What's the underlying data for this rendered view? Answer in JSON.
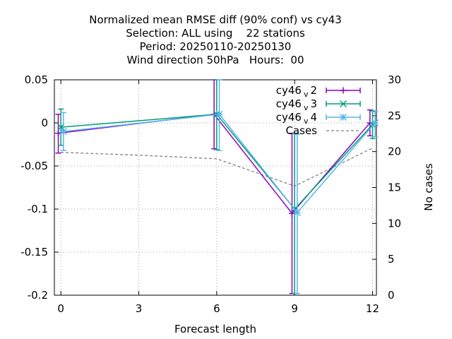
{
  "chart_data": {
    "type": "line",
    "title_lines": [
      "Normalized mean RMSE diff (90% conf) vs cy43",
      "Selection: ALL using    22 stations",
      "Period: 20250110-20250130",
      "Wind direction 50hPa   Hours:  00"
    ],
    "xlabel": "Forecast length",
    "ylabel": "",
    "y2label": "No cases",
    "xlim": [
      -0.25,
      12.15
    ],
    "ylim": [
      -0.2,
      0.05
    ],
    "y2lim": [
      0,
      30
    ],
    "xticks": [
      "0",
      "3",
      "6",
      "9",
      "12"
    ],
    "xtick_values": [
      0,
      3,
      6,
      9,
      12
    ],
    "yticks": [
      "0.05",
      "0",
      "-0.05",
      "-0.1",
      "-0.15",
      "-0.2"
    ],
    "ytick_values": [
      0.05,
      0,
      -0.05,
      -0.1,
      -0.15,
      -0.2
    ],
    "y2ticks": [
      "30",
      "25",
      "20",
      "15",
      "10",
      "5",
      "0"
    ],
    "y2tick_values": [
      30,
      25,
      20,
      15,
      10,
      5,
      0
    ],
    "grid": true,
    "legend_position": "top-right",
    "series": [
      {
        "name": "cy46",
        "subscript": "v",
        "suffix": "2",
        "color": "#8c00c8",
        "marker": "plus",
        "x": [
          -0.1,
          5.9,
          8.9,
          11.9
        ],
        "y": [
          -0.012,
          0.01,
          -0.105,
          0.0
        ],
        "err_low": [
          -0.035,
          -0.03,
          -0.198,
          -0.015
        ],
        "err_high": [
          0.01,
          0.05,
          -0.012,
          0.015
        ]
      },
      {
        "name": "cy46",
        "subscript": "v",
        "suffix": "3",
        "color": "#009e73",
        "marker": "cross",
        "x": [
          0.0,
          6.0,
          9.0,
          12.0
        ],
        "y": [
          -0.005,
          0.01,
          -0.1,
          -0.002
        ],
        "err_low": [
          -0.026,
          -0.031,
          -0.198,
          -0.018
        ],
        "err_high": [
          0.016,
          0.05,
          -0.012,
          0.014
        ]
      },
      {
        "name": "cy46",
        "subscript": "v",
        "suffix": "4",
        "color": "#56b4e9",
        "marker": "star",
        "x": [
          0.1,
          6.1,
          9.1,
          12.1
        ],
        "y": [
          -0.01,
          0.01,
          -0.104,
          0.0
        ],
        "err_low": [
          -0.032,
          -0.032,
          -0.198,
          -0.016
        ],
        "err_high": [
          0.012,
          0.05,
          -0.013,
          0.013
        ]
      }
    ],
    "cases": {
      "name": "Cases",
      "color": "#808080",
      "axis": "y2",
      "x": [
        0,
        3,
        6,
        9,
        12
      ],
      "y": [
        19.9,
        19.5,
        19.0,
        15.2,
        20.5
      ]
    }
  }
}
